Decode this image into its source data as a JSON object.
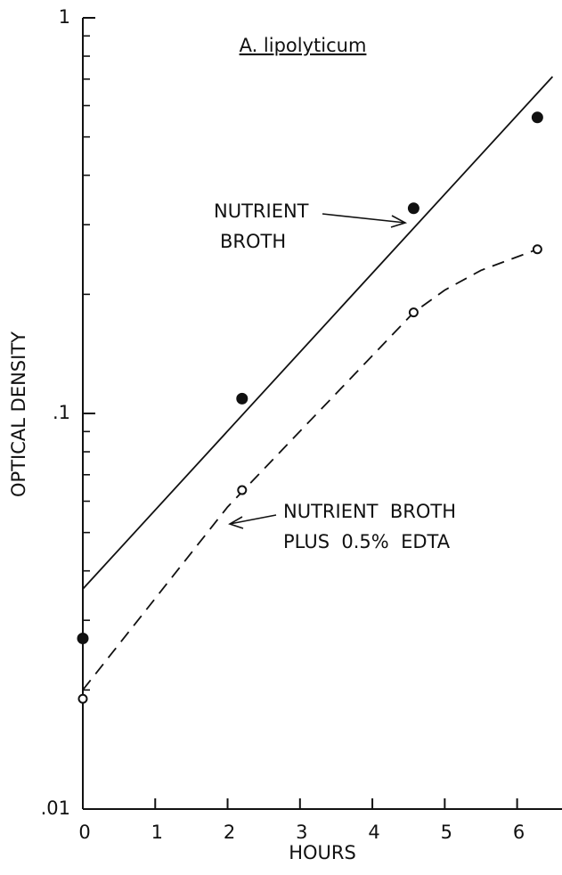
{
  "chart_data": {
    "type": "scatter",
    "title": "A. lipolyticum",
    "xlabel": "HOURS",
    "ylabel": "OPTICAL DENSITY",
    "log_y": true,
    "xlim": [
      0,
      6.62
    ],
    "ylim": [
      0.01,
      1
    ],
    "xticks": [
      0,
      1,
      2,
      3,
      4,
      5,
      6
    ],
    "yticks": [
      {
        "value": 0.01,
        "label": ".01"
      },
      {
        "value": 0.1,
        "label": ".1"
      },
      1
    ],
    "yminorticks": [
      0.02,
      0.03,
      0.04,
      0.05,
      0.06,
      0.07,
      0.08,
      0.09,
      0.2,
      0.3,
      0.4,
      0.5,
      0.6,
      0.7,
      0.8,
      0.9
    ],
    "series": [
      {
        "label_lines": [
          "NUTRIENT",
          "BROTH"
        ],
        "marker": "filled",
        "line": "solid",
        "color": "#111",
        "x": [
          0,
          2.2,
          4.57,
          6.28
        ],
        "values": [
          0.027,
          0.109,
          0.33,
          0.56
        ],
        "fit_x": [
          0,
          6.49
        ],
        "fit_values": [
          0.036,
          0.71
        ]
      },
      {
        "label_lines": [
          "NUTRIENT  BROTH",
          "PLUS  0.5%  EDTA"
        ],
        "marker": "open",
        "line": "dashed",
        "color": "#111",
        "x": [
          0,
          2.2,
          4.57,
          6.28
        ],
        "values": [
          0.019,
          0.064,
          0.18,
          0.26
        ],
        "fit_x": [
          0,
          2.0,
          4.57,
          5.0,
          5.5,
          6.28
        ],
        "fit_values": [
          0.02,
          0.058,
          0.18,
          0.205,
          0.23,
          0.26
        ]
      }
    ]
  }
}
